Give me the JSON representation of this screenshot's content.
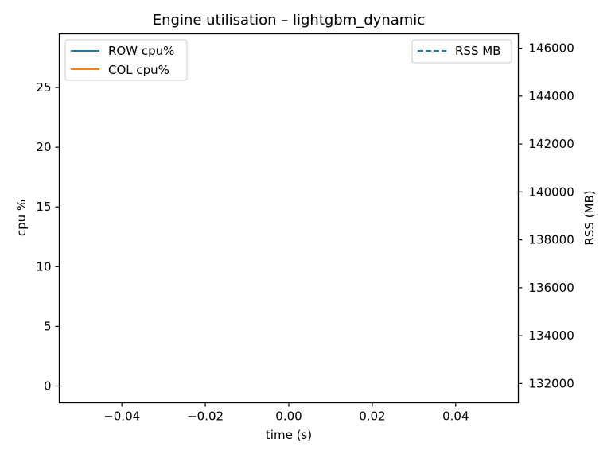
{
  "chart_data": {
    "type": "line",
    "title": "Engine utilisation – lightgbm_dynamic",
    "xlabel": "time (s)",
    "ylabel": "cpu %",
    "ylabel_right": "RSS (MB)",
    "xlim": [
      -0.055,
      0.055
    ],
    "ylim": [
      -1.4,
      29.5
    ],
    "ylim_right": [
      131200,
      146600
    ],
    "x_ticks": [
      -0.04,
      -0.02,
      0.0,
      0.02,
      0.04
    ],
    "x_tick_labels": [
      "−0.04",
      "−0.02",
      "0.00",
      "0.02",
      "0.04"
    ],
    "y_ticks": [
      0,
      5,
      10,
      15,
      20,
      25
    ],
    "y_tick_labels": [
      "0",
      "5",
      "10",
      "15",
      "20",
      "25"
    ],
    "y_right_ticks": [
      132000,
      134000,
      136000,
      138000,
      140000,
      142000,
      144000,
      146000
    ],
    "y_right_tick_labels": [
      "132000",
      "134000",
      "136000",
      "138000",
      "140000",
      "142000",
      "144000",
      "146000"
    ],
    "grid": false,
    "series": [
      {
        "name": "ROW cpu%",
        "axis": "left",
        "color": "#1f77b4",
        "style": "solid",
        "x": [],
        "values": []
      },
      {
        "name": "COL cpu%",
        "axis": "left",
        "color": "#ff7f0e",
        "style": "solid",
        "x": [],
        "values": []
      },
      {
        "name": "RSS MB",
        "axis": "right",
        "color": "#1f77b4",
        "style": "dashed",
        "x": [],
        "values": []
      }
    ],
    "legends": [
      {
        "placement": "top-left",
        "entries": [
          "ROW cpu%",
          "COL cpu%"
        ]
      },
      {
        "placement": "top-right",
        "entries": [
          "RSS MB"
        ]
      }
    ]
  }
}
